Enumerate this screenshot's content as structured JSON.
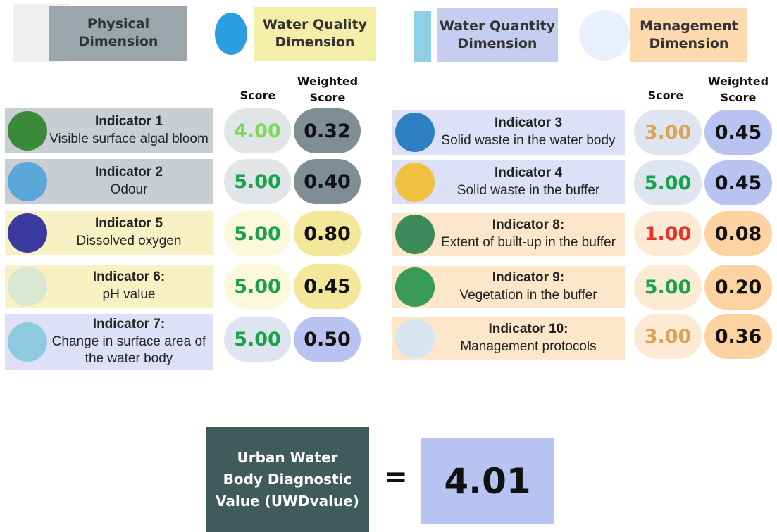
{
  "legend": [
    {
      "label": "Physical Dimension"
    },
    {
      "label": "Water Quality Dimension"
    },
    {
      "label": "Water Quantity Dimension"
    },
    {
      "label": "Management Dimension"
    }
  ],
  "left_table": {
    "score_header": "Score",
    "weighted_header": "Weighted Score",
    "rows": [
      {
        "title": "Indicator 1",
        "description": "Visible surface algal bloom",
        "score": "4.00",
        "weighted": "0.32"
      },
      {
        "title": "Indicator 2",
        "description": "Odour",
        "score": "5.00",
        "weighted": "0.40"
      },
      {
        "title": "Indicator 5",
        "description": "Dissolved oxygen",
        "score": "5.00",
        "weighted": "0.80"
      },
      {
        "title": "Indicator 6:",
        "description": "pH value",
        "score": "5.00",
        "weighted": "0.45"
      },
      {
        "title": "Indicator 7:",
        "description": "Change in surface area of the water body",
        "score": "5.00",
        "weighted": "0.50"
      }
    ]
  },
  "right_table": {
    "score_header": "Score",
    "weighted_header": "Weighted Score",
    "rows": [
      {
        "title": "Indicator 3",
        "description": "Solid waste in the water body",
        "score": "3.00",
        "weighted": "0.45"
      },
      {
        "title": "Indicator 4",
        "description": "Solid waste in the buffer",
        "score": "5.00",
        "weighted": "0.45"
      },
      {
        "title": "Indicator 8:",
        "description": "Extent of built-up in the buffer",
        "score": "1.00",
        "weighted": "0.08"
      },
      {
        "title": "Indicator 9:",
        "description": "Vegetation in the buffer",
        "score": "5.00",
        "weighted": "0.20"
      },
      {
        "title": "Indicator 10:",
        "description": "Management protocols",
        "score": "3.00",
        "weighted": "0.36"
      }
    ]
  },
  "result": {
    "label": "Urban Water Body Diagnostic Value (UWDvalue)",
    "equals": "=",
    "value": "4.01"
  }
}
